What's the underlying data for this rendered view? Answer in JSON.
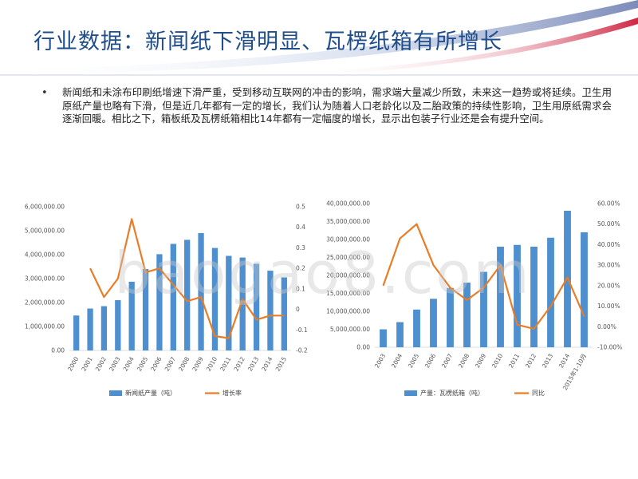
{
  "slide": {
    "title": "行业数据：新闻纸下滑明显、瓦楞纸箱有所增长",
    "bullet": "新闻纸和未涂布印刷纸增速下滑严重，受到移动互联网的冲击的影响，需求端大量减少所致，未来这一趋势或将延续。卫生用原纸产量也略有下滑，但是近几年都有一定的增长，我们认为随着人口老龄化以及二胎政策的持续性影响，卫生用原纸需求会逐渐回暖。相比之下，箱板纸及瓦楞纸箱相比14年都有一定幅度的增长，显示出包装子行业还是会有提升空间。"
  },
  "watermark": "baogao8.com",
  "colors": {
    "bar": "#4e8fcf",
    "line": "#e87d27",
    "title": "#1f4e8c"
  },
  "chart_data": [
    {
      "type": "bar",
      "categories": [
        "2000",
        "2001",
        "2002",
        "2003",
        "2004",
        "2005",
        "2006",
        "2007",
        "2008",
        "2009",
        "2010",
        "2011",
        "2012",
        "2013",
        "2014",
        "2015"
      ],
      "series": [
        {
          "name": "新闻纸产量（吨）",
          "type": "bar",
          "axis": "left",
          "values": [
            1460000,
            1750000,
            1850000,
            2100000,
            2870000,
            3400000,
            4020000,
            4450000,
            4620000,
            4900000,
            4280000,
            3950000,
            3880000,
            3620000,
            3330000,
            3050000
          ]
        },
        {
          "name": "增长率",
          "type": "line",
          "axis": "right",
          "values": [
            null,
            0.2,
            0.06,
            0.15,
            0.44,
            0.18,
            0.2,
            0.12,
            0.04,
            0.06,
            -0.13,
            -0.14,
            0.05,
            -0.05,
            -0.03,
            -0.03
          ]
        }
      ],
      "yleft": {
        "min": 0,
        "max": 6000000,
        "ticks": [
          "0.00",
          "1,000,000.00",
          "2,000,000.00",
          "3,000,000.00",
          "4,000,000.00",
          "5,000,000.00",
          "6,000,000.00"
        ]
      },
      "yright": {
        "min": -0.2,
        "max": 0.5,
        "ticks": [
          "-0.2",
          "-0.1",
          "0",
          "0.1",
          "0.2",
          "0.3",
          "0.4",
          "0.5"
        ]
      },
      "legend_position": "bottom",
      "grid": false
    },
    {
      "type": "bar",
      "categories": [
        "2003",
        "2004",
        "2005",
        "2006",
        "2007",
        "2008",
        "2009",
        "2010",
        "2011",
        "2012",
        "2013",
        "2014",
        "2015年1-10月"
      ],
      "series": [
        {
          "name": "产量：瓦楞纸箱（吨）",
          "type": "bar",
          "axis": "left",
          "values": [
            5000000,
            7000000,
            10500000,
            13500000,
            16500000,
            18000000,
            21000000,
            28000000,
            28500000,
            28000000,
            30500000,
            38000000,
            32000000
          ]
        },
        {
          "name": "同比",
          "type": "line",
          "axis": "right",
          "values": [
            0.2,
            0.43,
            0.5,
            0.3,
            0.19,
            0.13,
            0.19,
            0.3,
            0.01,
            -0.01,
            0.1,
            0.24,
            0.05
          ]
        }
      ],
      "yleft": {
        "min": 0,
        "max": 40000000,
        "ticks": [
          "0.00",
          "5,000,000.00",
          "10,000,000.00",
          "15,000,000.00",
          "20,000,000.00",
          "25,000,000.00",
          "30,000,000.00",
          "35,000,000.00",
          "40,000,000.00"
        ]
      },
      "yright": {
        "min": -0.1,
        "max": 0.6,
        "ticks": [
          "-10.00%",
          "0.00%",
          "10.00%",
          "20.00%",
          "30.00%",
          "40.00%",
          "50.00%",
          "60.00%"
        ]
      },
      "legend_position": "bottom",
      "grid": false
    }
  ]
}
